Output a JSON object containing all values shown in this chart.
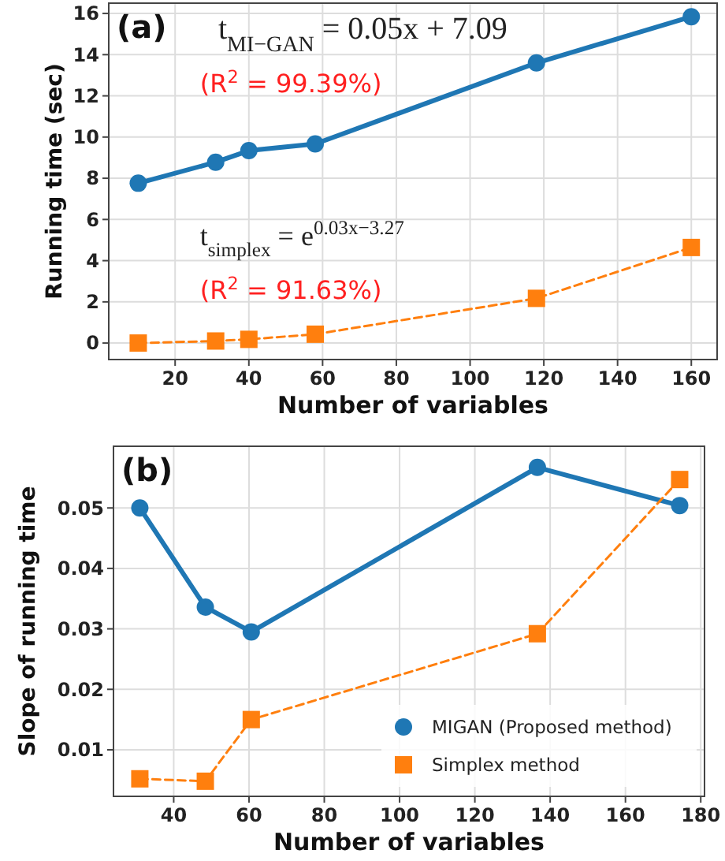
{
  "chart_data": [
    {
      "type": "line",
      "title": "(a)",
      "xlabel": "Number of variables",
      "ylabel": "Running time (sec)",
      "xlim": [
        2,
        167
      ],
      "xticks": [
        20,
        40,
        60,
        80,
        100,
        120,
        140,
        160
      ],
      "ylim": [
        -0.8,
        16.5
      ],
      "yticks": [
        0,
        2,
        4,
        6,
        8,
        10,
        12,
        14,
        16
      ],
      "grid": true,
      "annotations": [
        "t$_{MI−GAN}$ = 0.05x + 7.09",
        "(R$^{2}$ = 99.39%)",
        "t$_{simplex}$ = e$^{0.03x−3.27}$",
        "(R$^{2}$ = 91.63%)"
      ],
      "series": [
        {
          "color": "#1f77b4",
          "marker": "circle",
          "line_style": "solid",
          "x": [
            10,
            31,
            40,
            58,
            118,
            160
          ],
          "values": [
            7.76,
            8.78,
            9.34,
            9.67,
            13.6,
            15.84
          ]
        },
        {
          "color": "#ff7f0e",
          "marker": "square",
          "line_style": "dashed",
          "x": [
            10,
            31,
            40,
            58,
            118,
            160
          ],
          "values": [
            0.0,
            0.1,
            0.18,
            0.43,
            2.17,
            4.64
          ]
        }
      ]
    },
    {
      "type": "line",
      "title": "(b)",
      "xlabel": "Number of variables",
      "ylabel": "Slope of running time",
      "xlim": [
        24,
        181
      ],
      "xticks": [
        40,
        60,
        80,
        100,
        120,
        140,
        160,
        180
      ],
      "ylim": [
        0.0023,
        0.0602
      ],
      "yticks": [
        0.01,
        0.02,
        0.03,
        0.04,
        0.05
      ],
      "grid": true,
      "legend": "bottom right",
      "series": [
        {
          "name": "MIGAN (Proposed method)",
          "color": "#1f77b4",
          "marker": "circle",
          "line_style": "solid",
          "x": [
            31,
            48.4,
            60.6,
            136.6,
            174.4
          ],
          "values": [
            0.05,
            0.0336,
            0.0295,
            0.0567,
            0.0504
          ]
        },
        {
          "name": "Simplex method",
          "color": "#ff7f0e",
          "marker": "square",
          "line_style": "dashed",
          "x": [
            31,
            48.4,
            60.6,
            136.6,
            174.4
          ],
          "values": [
            0.0052,
            0.0048,
            0.015,
            0.0292,
            0.0547
          ]
        }
      ]
    }
  ]
}
